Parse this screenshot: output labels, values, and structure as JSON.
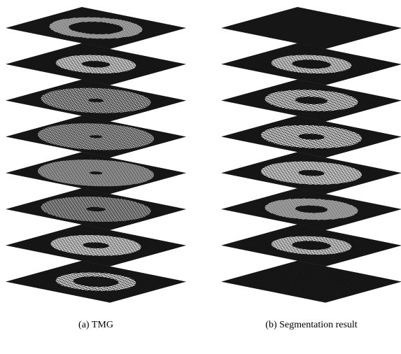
{
  "captions": {
    "a": "(a)  TMG",
    "b": "(b)  Segmentation result"
  }
}
